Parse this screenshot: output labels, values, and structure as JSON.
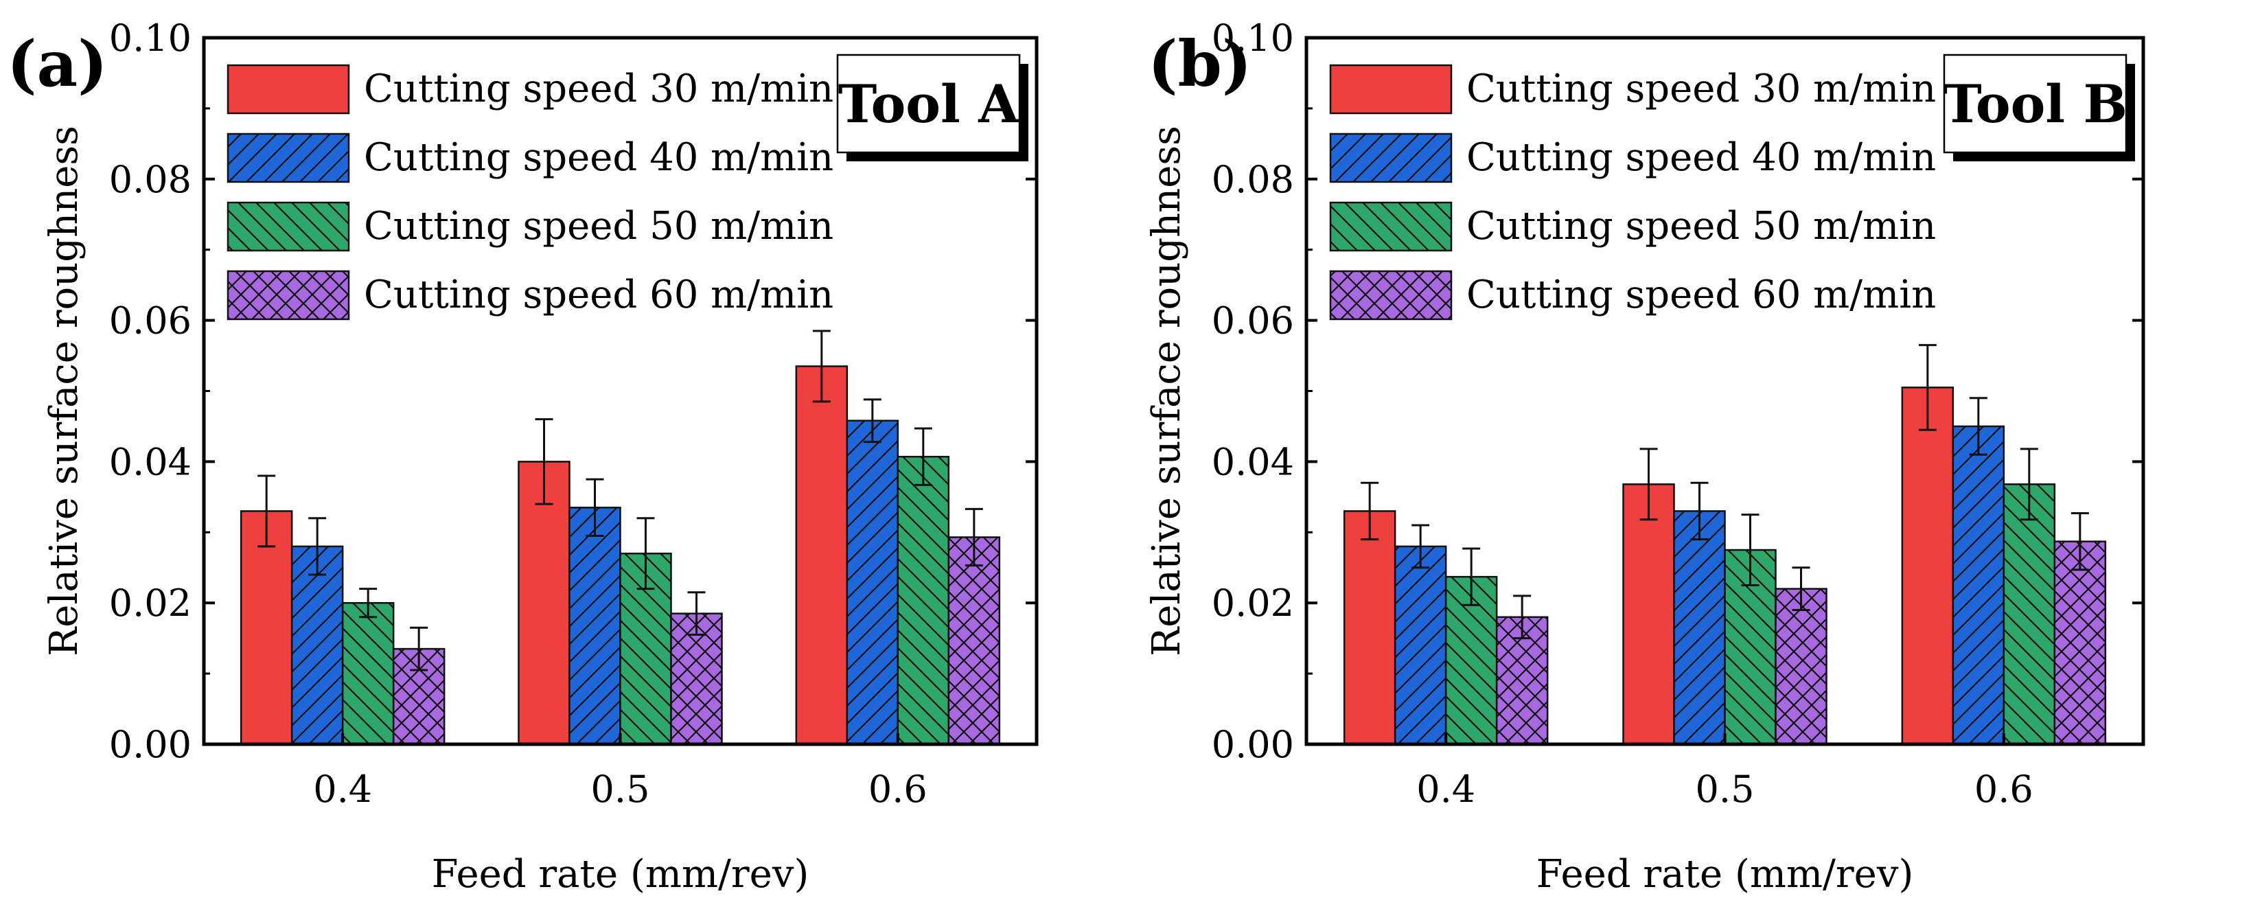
{
  "colors": {
    "series": [
      "#ef4040",
      "#1f66d8",
      "#2fa66a",
      "#a869e0"
    ],
    "axis": "#000000"
  },
  "patterns": [
    "solid",
    "hatch-forward",
    "hatch-back",
    "crosshatch"
  ],
  "chart_data": [
    {
      "panel_label": "(a)",
      "tool_label": "Tool A",
      "type": "bar",
      "xlabel": "Feed rate (mm/rev)",
      "ylabel": "Relative surface roughness",
      "categories": [
        "0.4",
        "0.5",
        "0.6"
      ],
      "ylim": [
        0,
        0.1
      ],
      "yticks": [
        "0.00",
        "0.02",
        "0.04",
        "0.06",
        "0.08",
        "0.10"
      ],
      "legend_position": "top-left",
      "series": [
        {
          "name": "Cutting speed 30 m/min",
          "values": [
            0.033,
            0.04,
            0.0535
          ],
          "errors": [
            0.005,
            0.006,
            0.005
          ]
        },
        {
          "name": "Cutting speed 40 m/min",
          "values": [
            0.028,
            0.0335,
            0.0458
          ],
          "errors": [
            0.004,
            0.004,
            0.003
          ]
        },
        {
          "name": "Cutting speed 50 m/min",
          "values": [
            0.02,
            0.027,
            0.0407
          ],
          "errors": [
            0.002,
            0.005,
            0.004
          ]
        },
        {
          "name": "Cutting speed 60 m/min",
          "values": [
            0.0135,
            0.0185,
            0.0293
          ],
          "errors": [
            0.003,
            0.003,
            0.004
          ]
        }
      ]
    },
    {
      "panel_label": "(b)",
      "tool_label": "Tool B",
      "type": "bar",
      "xlabel": "Feed rate (mm/rev)",
      "ylabel": "Relative surface roughness",
      "categories": [
        "0.4",
        "0.5",
        "0.6"
      ],
      "ylim": [
        0,
        0.1
      ],
      "yticks": [
        "0.00",
        "0.02",
        "0.04",
        "0.06",
        "0.08",
        "0.10"
      ],
      "legend_position": "top-left",
      "series": [
        {
          "name": "Cutting speed 30 m/min",
          "values": [
            0.033,
            0.0368,
            0.0505
          ],
          "errors": [
            0.004,
            0.005,
            0.006
          ]
        },
        {
          "name": "Cutting speed 40 m/min",
          "values": [
            0.028,
            0.033,
            0.045
          ],
          "errors": [
            0.003,
            0.004,
            0.004
          ]
        },
        {
          "name": "Cutting speed 50 m/min",
          "values": [
            0.0237,
            0.0275,
            0.0368
          ],
          "errors": [
            0.004,
            0.005,
            0.005
          ]
        },
        {
          "name": "Cutting speed 60 m/min",
          "values": [
            0.018,
            0.022,
            0.0287
          ],
          "errors": [
            0.003,
            0.003,
            0.004
          ]
        }
      ]
    }
  ]
}
